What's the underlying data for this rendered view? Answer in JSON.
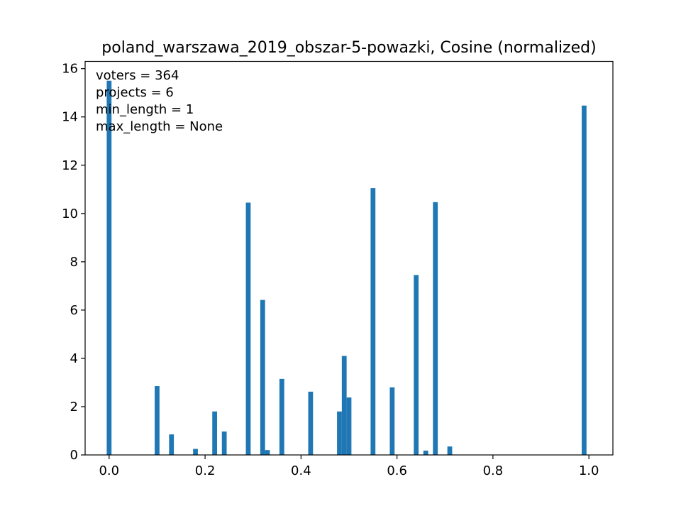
{
  "chart_data": {
    "type": "bar",
    "title": "poland_warszawa_2019_obszar-5-powazki, Cosine (normalized)",
    "xlabel": "",
    "ylabel": "",
    "xlim": [
      -0.05,
      1.05
    ],
    "ylim": [
      0,
      16.3
    ],
    "xticks": [
      0.0,
      0.2,
      0.4,
      0.6,
      0.8,
      1.0
    ],
    "xtick_labels": [
      "0.0",
      "0.2",
      "0.4",
      "0.6",
      "0.8",
      "1.0"
    ],
    "yticks": [
      0,
      2,
      4,
      6,
      8,
      10,
      12,
      14,
      16
    ],
    "ytick_labels": [
      "0",
      "2",
      "4",
      "6",
      "8",
      "10",
      "12",
      "14",
      "16"
    ],
    "bin_width": 0.01,
    "bar_color": "#1f77b4",
    "bins": [
      {
        "x": 0.0,
        "value": 15.5
      },
      {
        "x": 0.1,
        "value": 2.85
      },
      {
        "x": 0.13,
        "value": 0.85
      },
      {
        "x": 0.18,
        "value": 0.25
      },
      {
        "x": 0.22,
        "value": 1.8
      },
      {
        "x": 0.24,
        "value": 0.97
      },
      {
        "x": 0.29,
        "value": 10.45
      },
      {
        "x": 0.32,
        "value": 6.42
      },
      {
        "x": 0.33,
        "value": 0.2
      },
      {
        "x": 0.36,
        "value": 3.15
      },
      {
        "x": 0.42,
        "value": 2.62
      },
      {
        "x": 0.48,
        "value": 1.8
      },
      {
        "x": 0.49,
        "value": 4.1
      },
      {
        "x": 0.5,
        "value": 2.38
      },
      {
        "x": 0.55,
        "value": 11.05
      },
      {
        "x": 0.59,
        "value": 2.8
      },
      {
        "x": 0.64,
        "value": 7.45
      },
      {
        "x": 0.66,
        "value": 0.18
      },
      {
        "x": 0.68,
        "value": 10.47
      },
      {
        "x": 0.71,
        "value": 0.35
      },
      {
        "x": 0.99,
        "value": 14.47
      }
    ],
    "annotations": [
      "voters = 364",
      "projects = 6",
      "min_length = 1",
      "max_length = None"
    ]
  }
}
